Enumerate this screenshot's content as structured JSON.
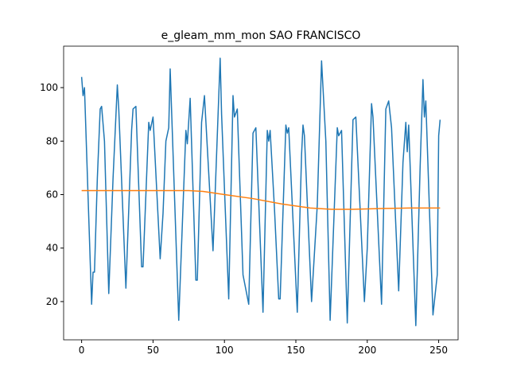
{
  "chart_data": {
    "type": "line",
    "title": "e_gleam_mm_mon SAO FRANCISCO",
    "xlim": [
      -12.6,
      263.6
    ],
    "xticks": [
      0,
      50,
      100,
      150,
      200,
      250
    ],
    "ylim": [
      5.7,
      115.5
    ],
    "yticks": [
      20,
      40,
      60,
      80,
      100
    ],
    "series": [
      {
        "color": "#1f77b4",
        "x": [
          0,
          1,
          2,
          7,
          8,
          9,
          11,
          13,
          14,
          16,
          19,
          22,
          25,
          26,
          31,
          35,
          36,
          38,
          42,
          43,
          47,
          48,
          50,
          55,
          57,
          59,
          61,
          62,
          68,
          73,
          74,
          76,
          80,
          81,
          84,
          86,
          92,
          97,
          98,
          103,
          106,
          107,
          109,
          113,
          117,
          120,
          122,
          127,
          130,
          131,
          132,
          135,
          138,
          139,
          143,
          144,
          145,
          151,
          154,
          155,
          156,
          161,
          165,
          168,
          171,
          174,
          179,
          180,
          182,
          186,
          190,
          192,
          198,
          200,
          203,
          204,
          210,
          213,
          215,
          217,
          222,
          225,
          227,
          228,
          229,
          234,
          237,
          239,
          240,
          241,
          246,
          249,
          250,
          251
        ],
        "values": [
          104,
          97,
          100,
          19,
          31,
          31,
          66,
          92,
          93,
          80,
          23,
          66,
          101,
          92,
          25,
          84,
          92,
          93,
          33,
          33,
          87,
          84,
          89,
          36,
          53,
          80,
          85,
          107,
          13,
          84,
          79,
          96,
          28,
          28,
          87,
          97,
          39,
          111,
          90,
          21,
          97,
          89,
          92,
          30,
          19,
          83,
          85,
          16,
          84,
          80,
          84,
          55,
          21,
          21,
          86,
          83,
          85,
          16,
          75,
          86,
          82,
          20,
          56,
          110,
          80,
          13,
          85,
          82,
          84,
          12,
          88,
          89,
          20,
          40,
          94,
          89,
          19,
          92,
          95,
          85,
          24,
          72,
          87,
          76,
          86,
          11,
          70,
          103,
          89,
          95,
          15,
          30,
          82,
          88
        ]
      },
      {
        "color": "#ff7f0e",
        "x": [
          0,
          25,
          50,
          75,
          85,
          100,
          120,
          140,
          160,
          175,
          190,
          210,
          230,
          251
        ],
        "values": [
          61.5,
          61.5,
          61.5,
          61.5,
          61.2,
          60,
          58.5,
          56.5,
          55,
          54.5,
          54.5,
          54.8,
          55,
          55
        ]
      }
    ]
  }
}
